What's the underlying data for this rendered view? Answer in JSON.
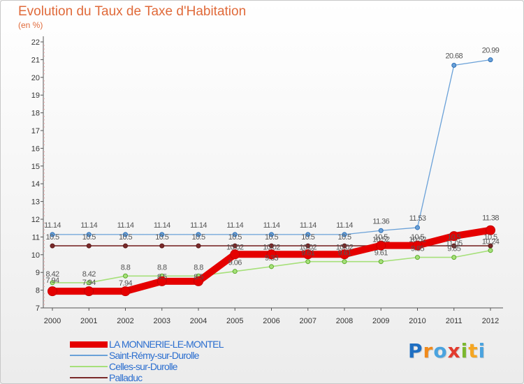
{
  "title": "Evolution du Taux de Taxe d'Habitation",
  "subtitle": "(en %)",
  "logo": {
    "text": "Proxiti",
    "letters": [
      {
        "ch": "P",
        "color": "#1f6fc2"
      },
      {
        "ch": "r",
        "color": "#f08a1c"
      },
      {
        "ch": "o",
        "color": "#4aa3df"
      },
      {
        "ch": "x",
        "color": "#e23b2e"
      },
      {
        "ch": "i",
        "color": "#7cb82f"
      },
      {
        "ch": "t",
        "color": "#f5a623"
      },
      {
        "ch": "i",
        "color": "#4aa3df"
      }
    ]
  },
  "chart_data": {
    "type": "line",
    "x": [
      "2000",
      "2001",
      "2002",
      "2003",
      "2004",
      "2005",
      "2006",
      "2007",
      "2008",
      "2009",
      "2010",
      "2011",
      "2012"
    ],
    "ylim": [
      7,
      22
    ],
    "yticks": [
      "7",
      "8",
      "9",
      "10",
      "11",
      "12",
      "13",
      "14",
      "15",
      "16",
      "17",
      "18",
      "19",
      "20",
      "21",
      "22"
    ],
    "grid": false,
    "legend_position": "bottom-left",
    "series": [
      {
        "name": "LA MONNERIE-LE-MONTEL",
        "color": "#e50000",
        "values": [
          7.94,
          7.94,
          7.94,
          8.5,
          8.5,
          10.02,
          10.02,
          10.02,
          10.02,
          10.52,
          10.52,
          11.05,
          11.38
        ],
        "labels": [
          "7.94",
          "7.94",
          "7.94",
          "8.5",
          "8.5",
          "10.02",
          "10.02",
          "10.02",
          "10.02",
          "10.52",
          "10.52",
          "11.05",
          "11.38"
        ]
      },
      {
        "name": "Saint-Rémy-sur-Durolle",
        "color": "#6aa1d8",
        "values": [
          11.14,
          11.14,
          11.14,
          11.14,
          11.14,
          11.14,
          11.14,
          11.14,
          11.14,
          11.36,
          11.53,
          20.68,
          20.99
        ],
        "labels": [
          "11.14",
          "11.14",
          "11.14",
          "11.14",
          "11.14",
          "11.14",
          "11.14",
          "11.14",
          "11.14",
          "11.36",
          "11.53",
          "20.68",
          "20.99"
        ]
      },
      {
        "name": "Celles-sur-Durolle",
        "color": "#a6e07a",
        "values": [
          8.42,
          8.42,
          8.8,
          8.8,
          8.8,
          9.06,
          9.33,
          9.61,
          9.61,
          9.61,
          9.85,
          9.85,
          10.24
        ],
        "labels": [
          "8.42",
          "8.42",
          "8.8",
          "8.8",
          "8.8",
          "9.06",
          "9.33",
          "9.61",
          "9.61",
          "9.61",
          "9.85",
          "9.85",
          "10.24"
        ]
      },
      {
        "name": "Palladuc",
        "color": "#7a2a2a",
        "values": [
          10.5,
          10.5,
          10.5,
          10.5,
          10.5,
          10.5,
          10.5,
          10.5,
          10.5,
          10.5,
          10.5,
          10.5,
          10.5
        ],
        "labels": [
          "10.5",
          "10.5",
          "10.5",
          "10.5",
          "10.5",
          "10.5",
          "10.5",
          "10.5",
          "10.5",
          "10.5",
          "10.5",
          "10.5",
          "10.5"
        ]
      }
    ]
  }
}
